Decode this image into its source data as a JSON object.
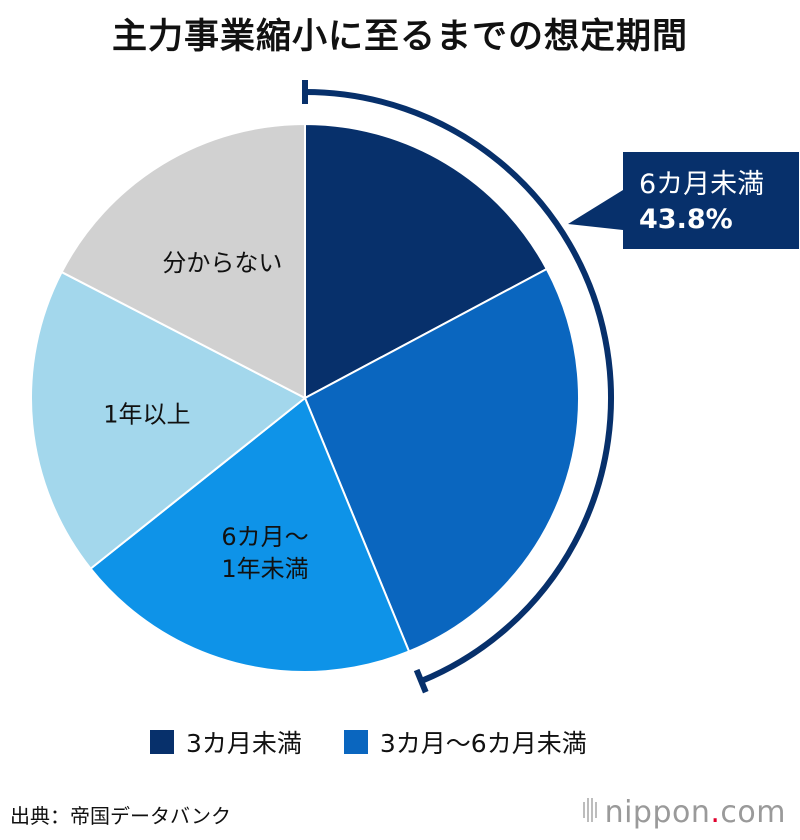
{
  "title": "主力事業縮小に至るまでの想定期間",
  "chart_data": {
    "type": "pie",
    "title": "主力事業縮小に至るまでの想定期間",
    "slices": [
      {
        "name": "3カ月未満",
        "value": 17.2,
        "color": "#07306b",
        "label": ""
      },
      {
        "name": "3カ月～6カ月未満",
        "value": 26.6,
        "color": "#0a66bf",
        "label": ""
      },
      {
        "name": "6カ月～1年未満",
        "value": 20.5,
        "color": "#0e93e8",
        "label": "6カ月～\n1年未満"
      },
      {
        "name": "1年以上",
        "value": 18.3,
        "color": "#a3d7ec",
        "label": "1年以上"
      },
      {
        "name": "分からない",
        "value": 17.4,
        "color": "#d1d1d1",
        "label": "分からない"
      }
    ],
    "bracket": {
      "label": "6カ月未満",
      "value": "43.8%",
      "covers": [
        "3カ月未満",
        "3カ月～6カ月未満"
      ]
    },
    "legend": {
      "placement": "bottom",
      "items": [
        {
          "label": "3カ月未満",
          "color": "#07306b"
        },
        {
          "label": "3カ月～6カ月未満",
          "color": "#0a66bf"
        }
      ]
    },
    "source": "出典：帝国データバンク"
  },
  "brand": {
    "name": "nippon",
    "dot": ".",
    "suffix": "com"
  }
}
